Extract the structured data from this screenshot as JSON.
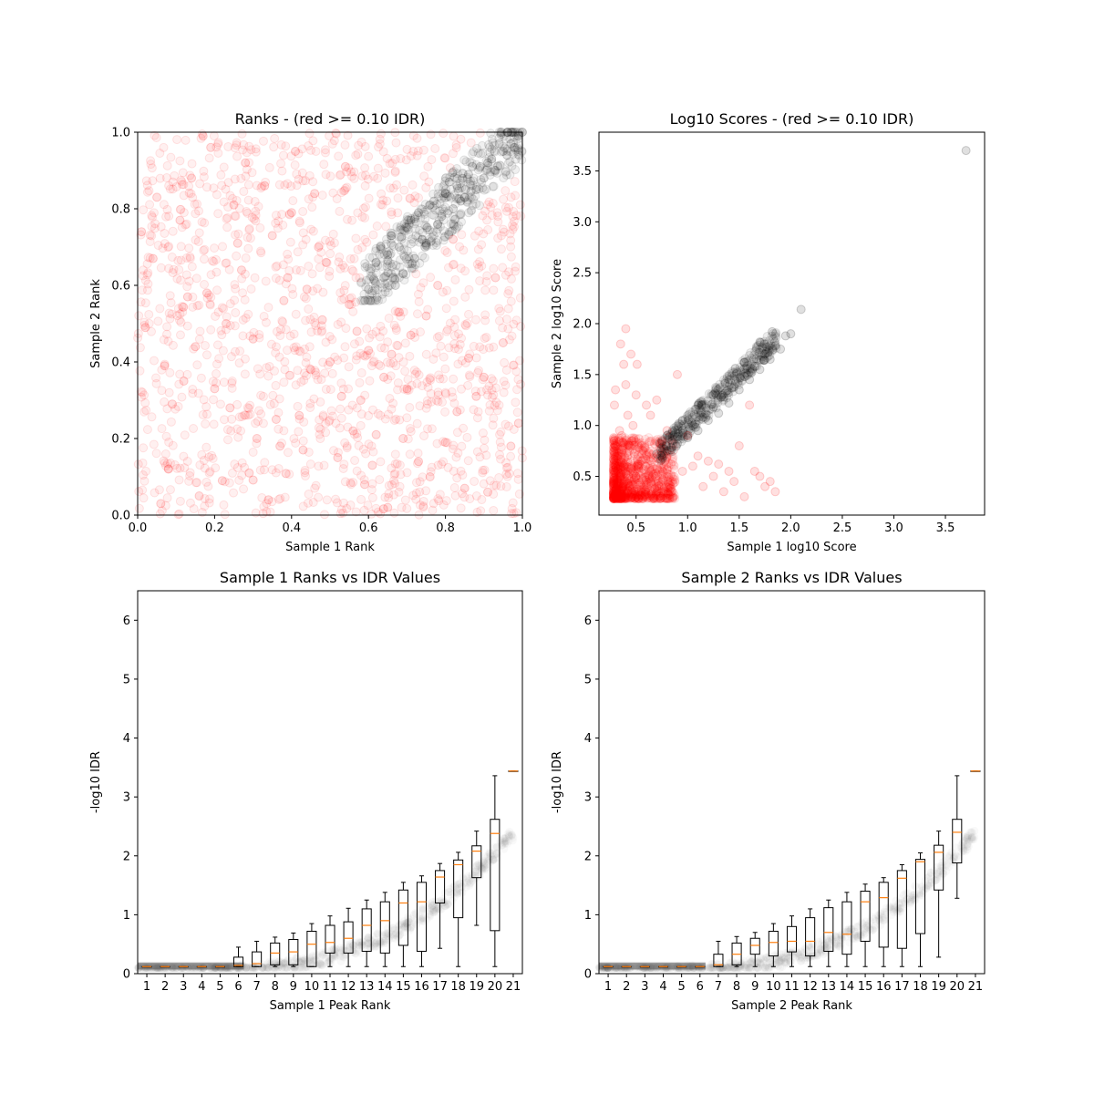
{
  "figure": {
    "background": "#ffffff"
  },
  "chart_data": [
    {
      "type": "scatter",
      "title": "Ranks - (red >= 0.10 IDR)",
      "xlabel": "Sample 1 Rank",
      "ylabel": "Sample 2 Rank",
      "xlim": [
        0,
        1
      ],
      "ylim": [
        0,
        1
      ],
      "xticks": [
        "0.0",
        "0.2",
        "0.4",
        "0.6",
        "0.8",
        "1.0"
      ],
      "yticks": [
        "0.0",
        "0.2",
        "0.4",
        "0.6",
        "0.8",
        "1.0"
      ],
      "colors": {
        "failing": "#ff0000",
        "passing": "#000000"
      },
      "series": [
        {
          "role": "failing",
          "x": [
            0.08,
            0.12,
            0.18,
            0.25,
            0.31,
            0.04,
            0.15,
            0.22,
            0.35,
            0.42,
            0.48,
            0.52,
            0.28,
            0.11,
            0.06,
            0.39,
            0.45,
            0.57,
            0.62,
            0.7,
            0.76,
            0.83,
            0.91,
            0.97,
            0.02,
            0.19,
            0.33,
            0.47,
            0.55,
            0.66,
            0.73,
            0.88,
            0.95,
            0.09,
            0.27,
            0.41,
            0.59,
            0.68,
            0.8,
            0.14,
            0.23,
            0.37,
            0.5,
            0.64,
            0.78,
            0.86,
            0.99,
            0.05,
            0.3,
            0.44,
            0.53,
            0.61,
            0.71,
            0.93,
            0.16,
            0.26,
            0.36,
            0.46,
            0.56,
            0.2,
            0.34,
            0.49,
            0.13,
            0.4,
            0.58,
            0.75,
            0.07,
            0.29,
            0.43,
            0.65,
            0.85,
            0.01,
            0.24,
            0.54,
            0.69,
            0.9,
            0.17,
            0.38,
            0.6,
            0.82
          ],
          "y": [
            0.12,
            0.35,
            0.58,
            0.81,
            0.2,
            0.67,
            0.44,
            0.09,
            0.73,
            0.26,
            0.51,
            0.15,
            0.92,
            0.77,
            0.03,
            0.62,
            0.38,
            0.48,
            0.21,
            0.33,
            0.1,
            0.27,
            0.06,
            0.18,
            0.49,
            0.96,
            0.86,
            0.7,
            0.55,
            0.42,
            0.14,
            0.31,
            0.45,
            0.29,
            0.64,
            0.95,
            0.08,
            0.53,
            0.19,
            0.88,
            0.5,
            0.18,
            0.4,
            0.36,
            0.6,
            0.41,
            0.24,
            0.83,
            0.46,
            0.59,
            0.31,
            0.13,
            0.47,
            0.62,
            0.05,
            0.71,
            0.25,
            0.84,
            0.22,
            0.33,
            0.04,
            0.66,
            0.57,
            0.79,
            0.3,
            0.52,
            0.39,
            0.11,
            0.17,
            0.02,
            0.07,
            0.74,
            0.28,
            0.91,
            0.2,
            0.36,
            0.99,
            0.56,
            0.43,
            0.72
          ]
        },
        {
          "role": "passing",
          "x": [
            0.6,
            0.62,
            0.64,
            0.66,
            0.67,
            0.68,
            0.7,
            0.72,
            0.73,
            0.75,
            0.77,
            0.78,
            0.8,
            0.82,
            0.83,
            0.85,
            0.86,
            0.88,
            0.89,
            0.9,
            0.92,
            0.93,
            0.95,
            0.96,
            0.97,
            0.98,
            0.99,
            1.0,
            0.65,
            0.69,
            0.71,
            0.74,
            0.76,
            0.79,
            0.81,
            0.84,
            0.87,
            0.91,
            0.94
          ],
          "y": [
            0.59,
            0.66,
            0.62,
            0.73,
            0.6,
            0.7,
            0.75,
            0.67,
            0.79,
            0.71,
            0.82,
            0.76,
            0.84,
            0.8,
            0.86,
            0.83,
            0.89,
            0.85,
            0.91,
            0.88,
            0.93,
            0.9,
            0.95,
            0.94,
            0.97,
            0.96,
            0.99,
            1.0,
            0.68,
            0.63,
            0.77,
            0.72,
            0.81,
            0.78,
            0.87,
            0.82,
            0.91,
            0.92,
            0.97
          ]
        }
      ]
    },
    {
      "type": "scatter",
      "title": "Log10 Scores - (red >= 0.10 IDR)",
      "xlabel": "Sample 1 log10 Score",
      "ylabel": "Sample 2 log10 Score",
      "xlim": [
        0.14,
        3.88
      ],
      "ylim": [
        0.12,
        3.88
      ],
      "xticks": [
        "0.5",
        "1.0",
        "1.5",
        "2.0",
        "2.5",
        "3.0",
        "3.5"
      ],
      "yticks": [
        "0.5",
        "1.0",
        "1.5",
        "2.0",
        "2.5",
        "3.0",
        "3.5"
      ],
      "colors": {
        "failing": "#ff0000",
        "passing": "#000000"
      },
      "series": [
        {
          "role": "failing",
          "x": [
            0.3,
            0.35,
            0.4,
            0.45,
            0.5,
            0.55,
            0.6,
            0.65,
            0.7,
            0.32,
            0.38,
            0.42,
            0.48,
            0.52,
            0.58,
            0.62,
            0.68,
            0.33,
            0.44,
            0.55,
            0.36,
            0.47,
            0.57,
            0.29,
            0.4,
            0.51,
            0.64,
            0.75,
            0.85,
            0.95,
            1.05,
            1.15,
            1.25,
            1.35,
            1.45,
            1.55,
            1.65,
            1.75,
            1.85,
            0.9,
            1.1,
            1.3,
            1.5,
            1.7,
            0.35,
            0.4,
            0.45,
            0.3,
            0.38,
            0.5,
            0.42,
            0.6,
            0.34,
            0.46,
            0.56,
            0.8,
            0.7,
            1.0,
            1.2,
            1.4,
            1.6,
            1.8
          ],
          "y": [
            0.32,
            0.38,
            0.45,
            0.3,
            0.5,
            0.35,
            0.42,
            0.33,
            0.4,
            0.55,
            0.6,
            0.36,
            0.48,
            0.62,
            0.31,
            0.52,
            0.38,
            0.7,
            0.8,
            0.65,
            0.9,
            1.0,
            0.75,
            1.2,
            1.4,
            1.6,
            1.1,
            0.85,
            0.45,
            0.55,
            0.6,
            0.4,
            0.5,
            0.35,
            0.45,
            0.3,
            0.55,
            0.4,
            0.35,
            1.5,
            0.7,
            0.62,
            0.8,
            0.5,
            1.8,
            1.95,
            1.7,
            1.35,
            1.6,
            1.3,
            1.1,
            1.2,
            0.95,
            0.85,
            0.72,
            0.95,
            1.25,
            0.9,
            0.65,
            0.55,
            1.2,
            0.45
          ]
        },
        {
          "role": "passing",
          "x": [
            0.7,
            0.75,
            0.8,
            0.85,
            0.9,
            0.95,
            1.0,
            1.05,
            1.1,
            1.15,
            1.2,
            1.25,
            1.3,
            1.35,
            1.4,
            1.45,
            1.5,
            1.55,
            1.6,
            1.65,
            1.7,
            1.75,
            1.8,
            1.85,
            1.9,
            1.95,
            2.0,
            2.1,
            0.8,
            0.95,
            1.1,
            1.25,
            1.4,
            1.55,
            1.7,
            1.82,
            3.7
          ],
          "y": [
            0.72,
            0.78,
            0.75,
            0.85,
            0.82,
            0.92,
            0.88,
            1.0,
            0.95,
            1.08,
            1.05,
            1.18,
            1.12,
            1.28,
            1.22,
            1.38,
            1.35,
            1.48,
            1.45,
            1.58,
            1.55,
            1.7,
            1.65,
            1.78,
            1.75,
            1.88,
            1.9,
            2.14,
            0.9,
            1.05,
            1.2,
            1.3,
            1.45,
            1.62,
            1.82,
            1.92,
            3.7
          ]
        }
      ]
    },
    {
      "type": "box",
      "title": "Sample 1 Ranks vs IDR Values",
      "xlabel": "Sample 1 Peak Rank",
      "ylabel": "-log10 IDR",
      "xlim": [
        0,
        21
      ],
      "ylim": [
        0,
        6.5
      ],
      "xticks": [
        "1",
        "2",
        "3",
        "4",
        "5",
        "6",
        "7",
        "8",
        "9",
        "10",
        "11",
        "12",
        "13",
        "14",
        "15",
        "16",
        "17",
        "18",
        "19",
        "20",
        "21"
      ],
      "yticks": [
        "0",
        "1",
        "2",
        "3",
        "4",
        "5",
        "6"
      ],
      "colors": {
        "box": "#000000",
        "median": "#ff7f0e",
        "background_points": "#000000"
      },
      "boxes": [
        {
          "position": 1,
          "whislo": 0.12,
          "q1": 0.12,
          "med": 0.12,
          "q3": 0.12,
          "whishi": 0.12
        },
        {
          "position": 2,
          "whislo": 0.12,
          "q1": 0.12,
          "med": 0.12,
          "q3": 0.12,
          "whishi": 0.12
        },
        {
          "position": 3,
          "whislo": 0.12,
          "q1": 0.12,
          "med": 0.12,
          "q3": 0.12,
          "whishi": 0.12
        },
        {
          "position": 4,
          "whislo": 0.12,
          "q1": 0.12,
          "med": 0.12,
          "q3": 0.12,
          "whishi": 0.12
        },
        {
          "position": 5,
          "whislo": 0.12,
          "q1": 0.12,
          "med": 0.12,
          "q3": 0.12,
          "whishi": 0.12
        },
        {
          "position": 6,
          "whislo": 0.12,
          "q1": 0.12,
          "med": 0.14,
          "q3": 0.28,
          "whishi": 0.45
        },
        {
          "position": 7,
          "whislo": 0.12,
          "q1": 0.12,
          "med": 0.17,
          "q3": 0.37,
          "whishi": 0.55
        },
        {
          "position": 8,
          "whislo": 0.12,
          "q1": 0.15,
          "med": 0.35,
          "q3": 0.52,
          "whishi": 0.62
        },
        {
          "position": 9,
          "whislo": 0.12,
          "q1": 0.15,
          "med": 0.37,
          "q3": 0.58,
          "whishi": 0.69
        },
        {
          "position": 10,
          "whislo": 0.12,
          "q1": 0.12,
          "med": 0.5,
          "q3": 0.72,
          "whishi": 0.85
        },
        {
          "position": 11,
          "whislo": 0.12,
          "q1": 0.35,
          "med": 0.53,
          "q3": 0.82,
          "whishi": 0.98
        },
        {
          "position": 12,
          "whislo": 0.12,
          "q1": 0.35,
          "med": 0.6,
          "q3": 0.88,
          "whishi": 1.11
        },
        {
          "position": 13,
          "whislo": 0.12,
          "q1": 0.38,
          "med": 0.82,
          "q3": 1.1,
          "whishi": 1.25
        },
        {
          "position": 14,
          "whislo": 0.12,
          "q1": 0.35,
          "med": 0.9,
          "q3": 1.22,
          "whishi": 1.38
        },
        {
          "position": 15,
          "whislo": 0.12,
          "q1": 0.48,
          "med": 1.2,
          "q3": 1.42,
          "whishi": 1.55
        },
        {
          "position": 16,
          "whislo": 0.12,
          "q1": 0.38,
          "med": 1.22,
          "q3": 1.55,
          "whishi": 1.66
        },
        {
          "position": 17,
          "whislo": 0.43,
          "q1": 1.2,
          "med": 1.64,
          "q3": 1.75,
          "whishi": 1.87
        },
        {
          "position": 18,
          "whislo": 0.12,
          "q1": 0.95,
          "med": 1.85,
          "q3": 1.93,
          "whishi": 2.06
        },
        {
          "position": 19,
          "whislo": 0.82,
          "q1": 1.63,
          "med": 2.08,
          "q3": 2.17,
          "whishi": 2.42
        },
        {
          "position": 20,
          "whislo": 0.12,
          "q1": 0.73,
          "med": 2.38,
          "q3": 2.62,
          "whishi": 3.36
        },
        {
          "position": 21,
          "whislo": 3.44,
          "q1": 3.44,
          "med": 3.44,
          "q3": 3.44,
          "whishi": 3.44
        }
      ]
    },
    {
      "type": "box",
      "title": "Sample 2 Ranks vs IDR Values",
      "xlabel": "Sample 2 Peak Rank",
      "ylabel": "-log10 IDR",
      "xlim": [
        0,
        21
      ],
      "ylim": [
        0,
        6.5
      ],
      "xticks": [
        "1",
        "2",
        "3",
        "4",
        "5",
        "6",
        "7",
        "8",
        "9",
        "10",
        "11",
        "12",
        "13",
        "14",
        "15",
        "16",
        "17",
        "18",
        "19",
        "20",
        "21"
      ],
      "yticks": [
        "0",
        "1",
        "2",
        "3",
        "4",
        "5",
        "6"
      ],
      "colors": {
        "box": "#000000",
        "median": "#ff7f0e",
        "background_points": "#000000"
      },
      "boxes": [
        {
          "position": 1,
          "whislo": 0.12,
          "q1": 0.12,
          "med": 0.12,
          "q3": 0.12,
          "whishi": 0.12
        },
        {
          "position": 2,
          "whislo": 0.12,
          "q1": 0.12,
          "med": 0.12,
          "q3": 0.12,
          "whishi": 0.12
        },
        {
          "position": 3,
          "whislo": 0.12,
          "q1": 0.12,
          "med": 0.12,
          "q3": 0.12,
          "whishi": 0.12
        },
        {
          "position": 4,
          "whislo": 0.12,
          "q1": 0.12,
          "med": 0.12,
          "q3": 0.12,
          "whishi": 0.12
        },
        {
          "position": 5,
          "whislo": 0.12,
          "q1": 0.12,
          "med": 0.12,
          "q3": 0.12,
          "whishi": 0.12
        },
        {
          "position": 6,
          "whislo": 0.12,
          "q1": 0.12,
          "med": 0.12,
          "q3": 0.12,
          "whishi": 0.12
        },
        {
          "position": 7,
          "whislo": 0.12,
          "q1": 0.12,
          "med": 0.15,
          "q3": 0.33,
          "whishi": 0.55
        },
        {
          "position": 8,
          "whislo": 0.12,
          "q1": 0.15,
          "med": 0.33,
          "q3": 0.52,
          "whishi": 0.63
        },
        {
          "position": 9,
          "whislo": 0.12,
          "q1": 0.33,
          "med": 0.48,
          "q3": 0.6,
          "whishi": 0.7
        },
        {
          "position": 10,
          "whislo": 0.12,
          "q1": 0.3,
          "med": 0.53,
          "q3": 0.72,
          "whishi": 0.85
        },
        {
          "position": 11,
          "whislo": 0.12,
          "q1": 0.37,
          "med": 0.55,
          "q3": 0.8,
          "whishi": 0.98
        },
        {
          "position": 12,
          "whislo": 0.12,
          "q1": 0.3,
          "med": 0.55,
          "q3": 0.95,
          "whishi": 1.1
        },
        {
          "position": 13,
          "whislo": 0.12,
          "q1": 0.38,
          "med": 0.7,
          "q3": 1.12,
          "whishi": 1.25
        },
        {
          "position": 14,
          "whislo": 0.12,
          "q1": 0.33,
          "med": 0.67,
          "q3": 1.22,
          "whishi": 1.38
        },
        {
          "position": 15,
          "whislo": 0.12,
          "q1": 0.55,
          "med": 1.22,
          "q3": 1.4,
          "whishi": 1.52
        },
        {
          "position": 16,
          "whislo": 0.12,
          "q1": 0.45,
          "med": 1.29,
          "q3": 1.55,
          "whishi": 1.63
        },
        {
          "position": 17,
          "whislo": 0.12,
          "q1": 0.43,
          "med": 1.62,
          "q3": 1.75,
          "whishi": 1.85
        },
        {
          "position": 18,
          "whislo": 0.12,
          "q1": 0.68,
          "med": 1.9,
          "q3": 1.94,
          "whishi": 2.05
        },
        {
          "position": 19,
          "whislo": 0.28,
          "q1": 1.42,
          "med": 2.06,
          "q3": 2.18,
          "whishi": 2.42
        },
        {
          "position": 20,
          "whislo": 1.28,
          "q1": 1.88,
          "med": 2.4,
          "q3": 2.62,
          "whishi": 3.36
        },
        {
          "position": 21,
          "whislo": 3.44,
          "q1": 3.44,
          "med": 3.44,
          "q3": 3.44,
          "whishi": 3.44
        }
      ]
    }
  ]
}
